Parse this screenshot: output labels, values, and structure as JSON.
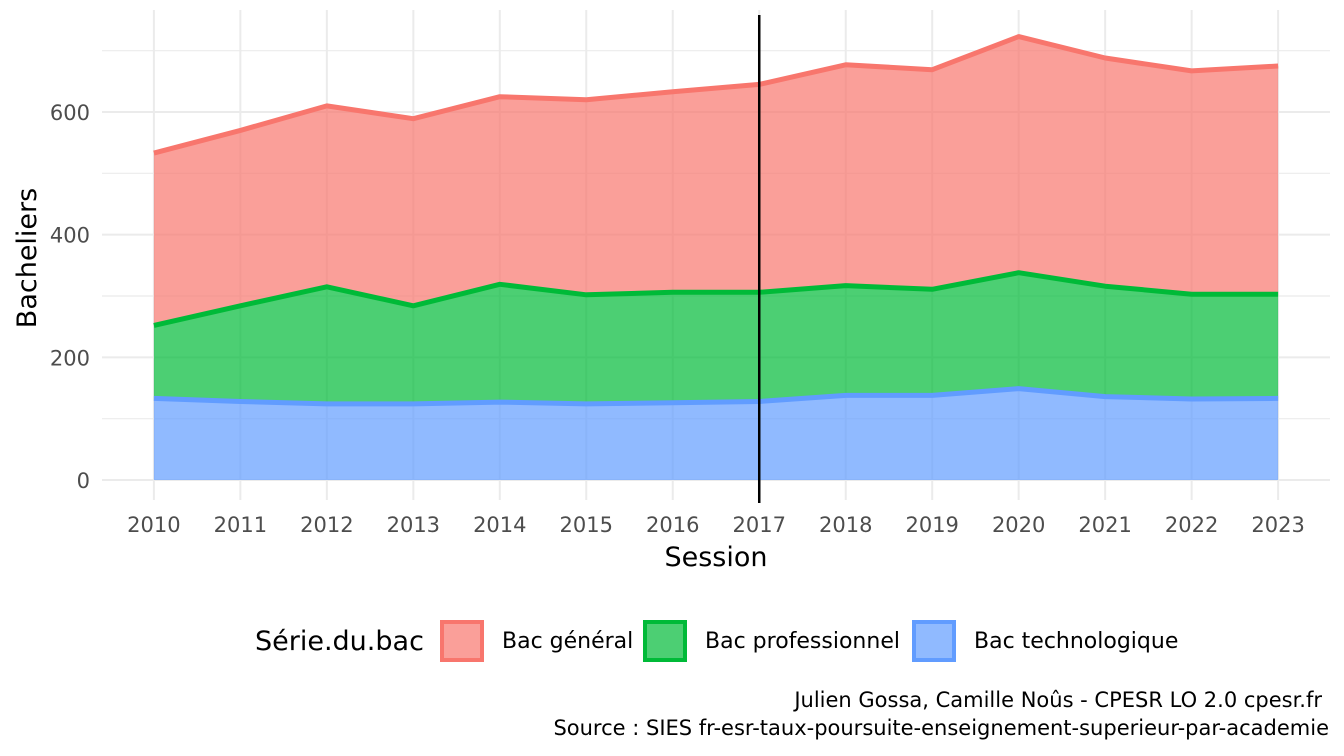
{
  "chart_data": {
    "type": "area",
    "stacked": true,
    "xlabel": "Session",
    "ylabel": "Bacheliers",
    "x": [
      2010,
      2011,
      2012,
      2013,
      2014,
      2015,
      2016,
      2017,
      2018,
      2019,
      2020,
      2021,
      2022,
      2023
    ],
    "xlim": [
      2009.4,
      2023.6
    ],
    "ylim": [
      0,
      750
    ],
    "yticks": [
      0,
      200,
      400,
      600
    ],
    "grid": true,
    "vline_x": 2017,
    "series": [
      {
        "name": "Bac technologique",
        "color": "#619CFF",
        "values": [
          133,
          128,
          124,
          124,
          127,
          124,
          126,
          128,
          138,
          138,
          149,
          136,
          132,
          133
        ]
      },
      {
        "name": "Bac professionnel",
        "color": "#00BA38",
        "values": [
          119,
          156,
          191,
          160,
          192,
          178,
          180,
          178,
          179,
          173,
          189,
          180,
          171,
          170
        ]
      },
      {
        "name": "Bac général",
        "color": "#F8766D",
        "values": [
          281,
          286,
          295,
          305,
          306,
          318,
          327,
          339,
          360,
          358,
          385,
          372,
          364,
          372
        ]
      }
    ],
    "legend": {
      "title": "Série.du.bac",
      "position": "bottom",
      "items": [
        "Bac général",
        "Bac professionnel",
        "Bac technologique"
      ]
    }
  },
  "caption": {
    "line1": "Julien Gossa, Camille Noûs - CPESR LO 2.0 cpesr.fr",
    "line2": "Source : SIES fr-esr-taux-poursuite-enseignement-superieur-par-academie"
  }
}
